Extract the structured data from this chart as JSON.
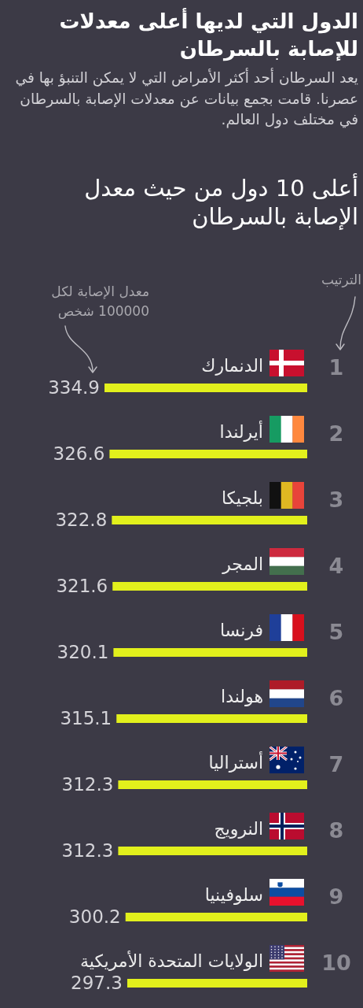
{
  "chart_data": {
    "type": "bar",
    "orientation": "horizontal",
    "title": "الدول التي لديها أعلى معدلات للإصابة بالسرطان",
    "subtitle": "يعد السرطان أحد أكثر الأمراض التي لا يمكن التنبؤ بها في عصرنا. قامت بجمع بيانات عن معدلات الإصابة بالسرطان في مختلف دول العالم.",
    "xlabel": "معدل الإصابة لكل 100000 شخص",
    "categories": [
      "الدنمارك",
      "أيرلندا",
      "بلجيكا",
      "المجر",
      "فرنسا",
      "هولندا",
      "أستراليا",
      "النرويج",
      "سلوفينيا",
      "الولايات المتحدة الأمريكية"
    ],
    "values": [
      334.9,
      326.6,
      322.8,
      321.6,
      320.1,
      315.1,
      312.3,
      312.3,
      300.2,
      297.3
    ],
    "color": "#e2f01c",
    "data_labels": true,
    "annotations": [
      "أعلى 10 دول من حيث معدل الإصابة بالسرطان",
      "الترتيب",
      "1",
      "2",
      "3",
      "4",
      "5",
      "6",
      "7",
      "8",
      "9",
      "10"
    ]
  }
}
